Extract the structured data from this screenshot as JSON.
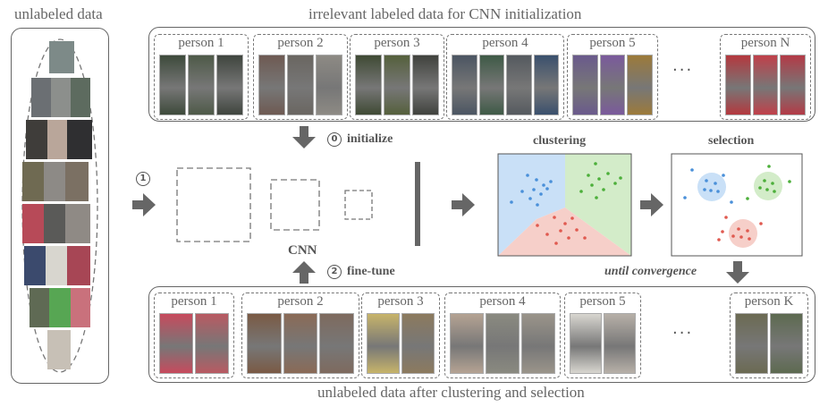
{
  "titles": {
    "unlabeled": "unlabeled data",
    "top": "irrelevant labeled data for CNN initialization",
    "bottom": "unlabeled data after clustering and selection"
  },
  "top_groups": [
    "person 1",
    "person 2",
    "person 3",
    "person 4",
    "person 5",
    "person N"
  ],
  "bottom_groups": [
    "person 1",
    "person 2",
    "person 3",
    "person 4",
    "person 5",
    "person K"
  ],
  "ellipsis": "···",
  "steps": {
    "step0_num": "0",
    "step0": "initialize",
    "step1_num": "1",
    "step2_num": "2",
    "step2": "fine-tune",
    "cnn": "CNN",
    "clustering": "clustering",
    "selection": "selection",
    "until": "until convergence"
  },
  "colors": {
    "cluster_blue": "#c9e0f7",
    "cluster_green": "#d3ecc9",
    "cluster_red": "#f6cfc9",
    "arrow": "#666666"
  }
}
